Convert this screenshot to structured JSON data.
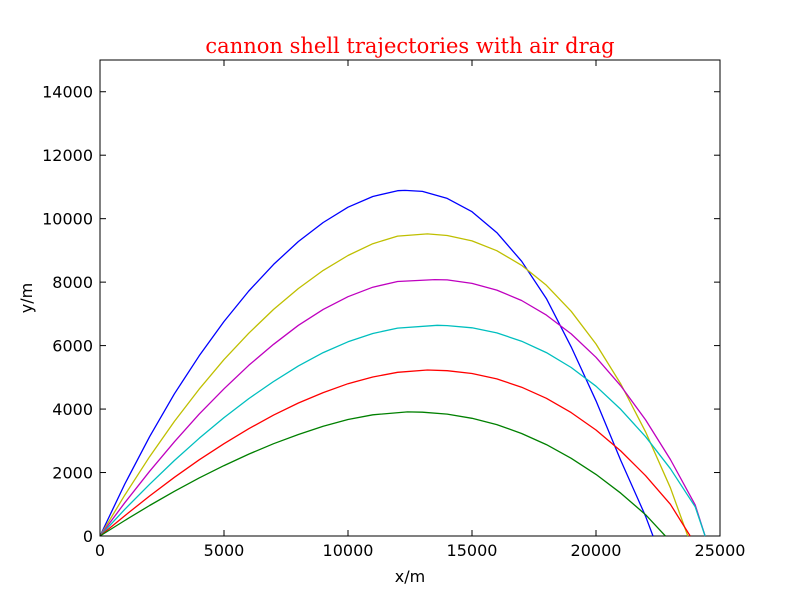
{
  "chart_data": {
    "type": "line",
    "title": "cannon shell trajectories with air drag",
    "title_color": "#ff0000",
    "xlabel": "x/m",
    "ylabel": "y/m",
    "xlim": [
      0,
      25000
    ],
    "ylim": [
      0,
      15000
    ],
    "x_ticks": [
      0,
      5000,
      10000,
      15000,
      20000,
      25000
    ],
    "y_ticks": [
      0,
      2000,
      4000,
      6000,
      8000,
      10000,
      12000,
      14000
    ],
    "grid": false,
    "legend": "none",
    "series": [
      {
        "color": "#0000ff",
        "points": [
          [
            0,
            0
          ],
          [
            1000,
            1640
          ],
          [
            2000,
            3130
          ],
          [
            3000,
            4480
          ],
          [
            4000,
            5680
          ],
          [
            5000,
            6760
          ],
          [
            6000,
            7720
          ],
          [
            7000,
            8560
          ],
          [
            8000,
            9280
          ],
          [
            9000,
            9880
          ],
          [
            10000,
            10360
          ],
          [
            11000,
            10700
          ],
          [
            12000,
            10880
          ],
          [
            12300,
            10890
          ],
          [
            13000,
            10860
          ],
          [
            14000,
            10640
          ],
          [
            15000,
            10220
          ],
          [
            16000,
            9560
          ],
          [
            17000,
            8660
          ],
          [
            18000,
            7480
          ],
          [
            19000,
            5960
          ],
          [
            20000,
            4260
          ],
          [
            21000,
            2380
          ],
          [
            22000,
            620
          ],
          [
            22300,
            0
          ]
        ]
      },
      {
        "color": "#bfbf00",
        "points": [
          [
            0,
            0
          ],
          [
            1000,
            1290
          ],
          [
            2000,
            2500
          ],
          [
            3000,
            3610
          ],
          [
            4000,
            4630
          ],
          [
            5000,
            5560
          ],
          [
            6000,
            6390
          ],
          [
            7000,
            7140
          ],
          [
            8000,
            7800
          ],
          [
            9000,
            8370
          ],
          [
            10000,
            8840
          ],
          [
            11000,
            9210
          ],
          [
            12000,
            9450
          ],
          [
            13200,
            9520
          ],
          [
            14000,
            9470
          ],
          [
            15000,
            9300
          ],
          [
            16000,
            8990
          ],
          [
            17000,
            8530
          ],
          [
            18000,
            7900
          ],
          [
            19000,
            7080
          ],
          [
            20000,
            6050
          ],
          [
            21000,
            4790
          ],
          [
            22000,
            3280
          ],
          [
            23000,
            1520
          ],
          [
            23700,
            0
          ]
        ]
      },
      {
        "color": "#bf00bf",
        "points": [
          [
            0,
            0
          ],
          [
            1000,
            1050
          ],
          [
            2000,
            2040
          ],
          [
            3000,
            2970
          ],
          [
            4000,
            3840
          ],
          [
            5000,
            4640
          ],
          [
            6000,
            5380
          ],
          [
            7000,
            6040
          ],
          [
            8000,
            6640
          ],
          [
            9000,
            7140
          ],
          [
            10000,
            7540
          ],
          [
            11000,
            7840
          ],
          [
            12000,
            8020
          ],
          [
            13500,
            8080
          ],
          [
            14000,
            8070
          ],
          [
            15000,
            7960
          ],
          [
            16000,
            7750
          ],
          [
            17000,
            7420
          ],
          [
            18000,
            6960
          ],
          [
            19000,
            6370
          ],
          [
            20000,
            5630
          ],
          [
            21000,
            4730
          ],
          [
            22000,
            3660
          ],
          [
            23000,
            2410
          ],
          [
            24000,
            980
          ],
          [
            24400,
            0
          ]
        ]
      },
      {
        "color": "#00bfbf",
        "points": [
          [
            0,
            0
          ],
          [
            1000,
            840
          ],
          [
            2000,
            1630
          ],
          [
            3000,
            2380
          ],
          [
            4000,
            3080
          ],
          [
            5000,
            3730
          ],
          [
            6000,
            4330
          ],
          [
            7000,
            4870
          ],
          [
            8000,
            5360
          ],
          [
            9000,
            5780
          ],
          [
            10000,
            6120
          ],
          [
            11000,
            6380
          ],
          [
            12000,
            6550
          ],
          [
            13600,
            6640
          ],
          [
            14000,
            6630
          ],
          [
            15000,
            6560
          ],
          [
            16000,
            6400
          ],
          [
            17000,
            6140
          ],
          [
            18000,
            5780
          ],
          [
            19000,
            5310
          ],
          [
            20000,
            4720
          ],
          [
            21000,
            3990
          ],
          [
            22000,
            3130
          ],
          [
            23000,
            2120
          ],
          [
            24000,
            920
          ],
          [
            24400,
            0
          ]
        ]
      },
      {
        "color": "#ff0000",
        "points": [
          [
            0,
            0
          ],
          [
            1000,
            640
          ],
          [
            2000,
            1260
          ],
          [
            3000,
            1850
          ],
          [
            4000,
            2400
          ],
          [
            5000,
            2910
          ],
          [
            6000,
            3380
          ],
          [
            7000,
            3810
          ],
          [
            8000,
            4190
          ],
          [
            9000,
            4520
          ],
          [
            10000,
            4800
          ],
          [
            11000,
            5010
          ],
          [
            12000,
            5160
          ],
          [
            13200,
            5230
          ],
          [
            14000,
            5210
          ],
          [
            15000,
            5120
          ],
          [
            16000,
            4950
          ],
          [
            17000,
            4690
          ],
          [
            18000,
            4340
          ],
          [
            19000,
            3890
          ],
          [
            20000,
            3340
          ],
          [
            21000,
            2680
          ],
          [
            22000,
            1900
          ],
          [
            23000,
            1000
          ],
          [
            23800,
            0
          ]
        ]
      },
      {
        "color": "#008000",
        "points": [
          [
            0,
            0
          ],
          [
            1000,
            490
          ],
          [
            2000,
            960
          ],
          [
            3000,
            1410
          ],
          [
            4000,
            1830
          ],
          [
            5000,
            2220
          ],
          [
            6000,
            2580
          ],
          [
            7000,
            2910
          ],
          [
            8000,
            3200
          ],
          [
            9000,
            3460
          ],
          [
            10000,
            3670
          ],
          [
            11000,
            3820
          ],
          [
            12400,
            3910
          ],
          [
            13000,
            3900
          ],
          [
            14000,
            3840
          ],
          [
            15000,
            3710
          ],
          [
            16000,
            3510
          ],
          [
            17000,
            3230
          ],
          [
            18000,
            2880
          ],
          [
            19000,
            2450
          ],
          [
            20000,
            1940
          ],
          [
            21000,
            1350
          ],
          [
            22000,
            670
          ],
          [
            22500,
            250
          ],
          [
            22800,
            0
          ]
        ]
      }
    ]
  }
}
